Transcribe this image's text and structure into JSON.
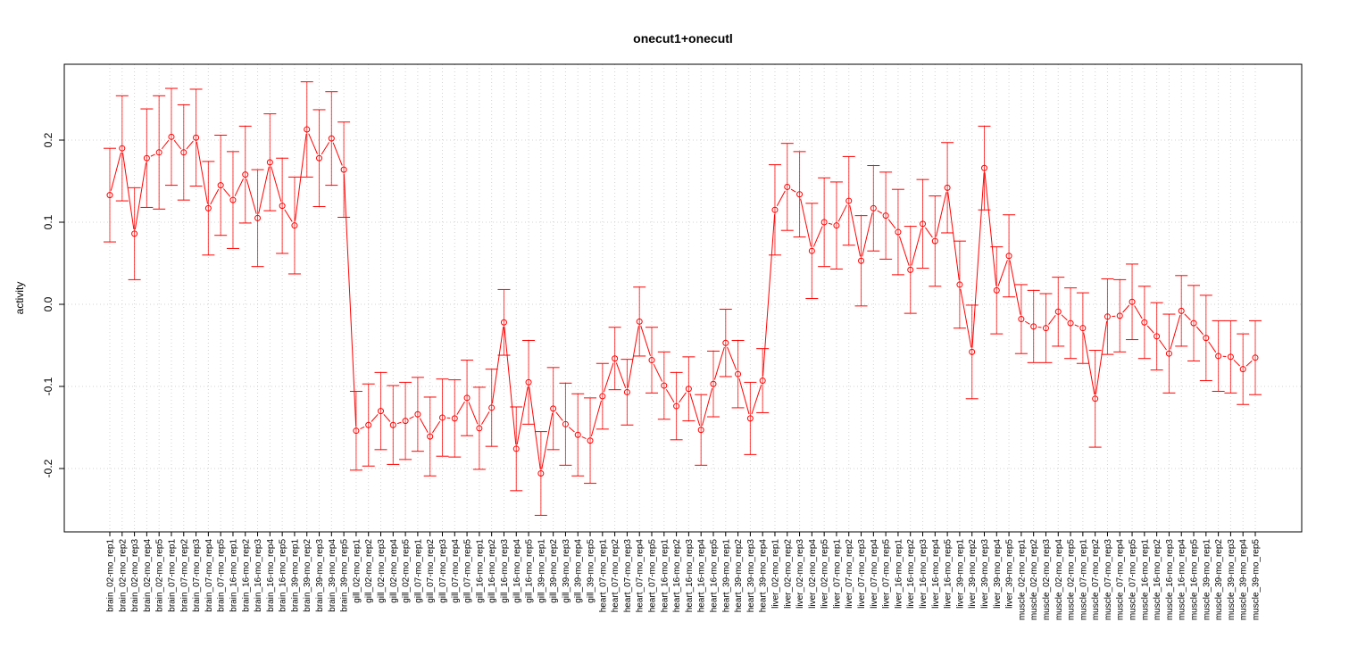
{
  "chart_data": {
    "type": "line",
    "title": "onecut1+onecutl",
    "xlabel": "",
    "ylabel": "activity",
    "ylim": [
      -0.28,
      0.29
    ],
    "yticks": [
      -0.2,
      -0.1,
      0.0,
      0.1,
      0.2
    ],
    "ytick_labels": [
      "-0.2",
      "-0.1",
      "0.0",
      "0.1",
      "0.2"
    ],
    "grid": true,
    "color": "#ff0000",
    "categories": [
      "brain_02-mo_rep1",
      "brain_02-mo_rep2",
      "brain_02-mo_rep3",
      "brain_02-mo_rep4",
      "brain_02-mo_rep5",
      "brain_07-mo_rep1",
      "brain_07-mo_rep2",
      "brain_07-mo_rep3",
      "brain_07-mo_rep4",
      "brain_07-mo_rep5",
      "brain_16-mo_rep1",
      "brain_16-mo_rep2",
      "brain_16-mo_rep3",
      "brain_16-mo_rep4",
      "brain_16-mo_rep5",
      "brain_39-mo_rep1",
      "brain_39-mo_rep2",
      "brain_39-mo_rep3",
      "brain_39-mo_rep4",
      "brain_39-mo_rep5",
      "gill_02-mo_rep1",
      "gill_02-mo_rep2",
      "gill_02-mo_rep3",
      "gill_02-mo_rep4",
      "gill_02-mo_rep5",
      "gill_07-mo_rep1",
      "gill_07-mo_rep2",
      "gill_07-mo_rep3",
      "gill_07-mo_rep4",
      "gill_07-mo_rep5",
      "gill_16-mo_rep1",
      "gill_16-mo_rep2",
      "gill_16-mo_rep3",
      "gill_16-mo_rep4",
      "gill_16-mo_rep5",
      "gill_39-mo_rep1",
      "gill_39-mo_rep2",
      "gill_39-mo_rep3",
      "gill_39-mo_rep4",
      "gill_39-mo_rep5",
      "heart_07-mo_rep1",
      "heart_07-mo_rep2",
      "heart_07-mo_rep3",
      "heart_07-mo_rep4",
      "heart_07-mo_rep5",
      "heart_16-mo_rep1",
      "heart_16-mo_rep2",
      "heart_16-mo_rep3",
      "heart_16-mo_rep4",
      "heart_16-mo_rep5",
      "heart_39-mo_rep1",
      "heart_39-mo_rep2",
      "heart_39-mo_rep3",
      "heart_39-mo_rep4",
      "liver_02-mo_rep1",
      "liver_02-mo_rep2",
      "liver_02-mo_rep3",
      "liver_02-mo_rep4",
      "liver_02-mo_rep5",
      "liver_07-mo_rep1",
      "liver_07-mo_rep2",
      "liver_07-mo_rep3",
      "liver_07-mo_rep4",
      "liver_07-mo_rep5",
      "liver_16-mo_rep1",
      "liver_16-mo_rep2",
      "liver_16-mo_rep3",
      "liver_16-mo_rep4",
      "liver_16-mo_rep5",
      "liver_39-mo_rep1",
      "liver_39-mo_rep2",
      "liver_39-mo_rep3",
      "liver_39-mo_rep4",
      "liver_39-mo_rep5",
      "muscle_02-mo_rep1",
      "muscle_02-mo_rep2",
      "muscle_02-mo_rep3",
      "muscle_02-mo_rep4",
      "muscle_02-mo_rep5",
      "muscle_07-mo_rep1",
      "muscle_07-mo_rep2",
      "muscle_07-mo_rep3",
      "muscle_07-mo_rep4",
      "muscle_07-mo_rep5",
      "muscle_16-mo_rep1",
      "muscle_16-mo_rep2",
      "muscle_16-mo_rep3",
      "muscle_16-mo_rep4",
      "muscle_16-mo_rep5",
      "muscle_39-mo_rep1",
      "muscle_39-mo_rep2",
      "muscle_39-mo_rep3",
      "muscle_39-mo_rep4",
      "muscle_39-mo_rep5"
    ],
    "values": [
      0.133,
      0.19,
      0.086,
      0.178,
      0.185,
      0.204,
      0.185,
      0.203,
      0.117,
      0.145,
      0.127,
      0.158,
      0.105,
      0.173,
      0.12,
      0.096,
      0.213,
      0.178,
      0.202,
      0.164,
      -0.154,
      -0.147,
      -0.13,
      -0.147,
      -0.142,
      -0.134,
      -0.161,
      -0.138,
      -0.139,
      -0.114,
      -0.151,
      -0.126,
      -0.022,
      -0.176,
      -0.095,
      -0.206,
      -0.127,
      -0.146,
      -0.159,
      -0.166,
      -0.112,
      -0.066,
      -0.107,
      -0.021,
      -0.068,
      -0.099,
      -0.124,
      -0.103,
      -0.153,
      -0.097,
      -0.047,
      -0.085,
      -0.139,
      -0.093,
      0.115,
      0.143,
      0.134,
      0.065,
      0.1,
      0.096,
      0.126,
      0.053,
      0.117,
      0.108,
      0.088,
      0.042,
      0.098,
      0.077,
      0.142,
      0.024,
      -0.058,
      0.166,
      0.017,
      0.059,
      -0.018,
      -0.027,
      -0.029,
      -0.009,
      -0.023,
      -0.029,
      -0.115,
      -0.015,
      -0.014,
      0.003,
      -0.022,
      -0.039,
      -0.06,
      -0.008,
      -0.023,
      -0.041,
      -0.063,
      -0.064,
      -0.079,
      -0.065
    ],
    "errors": [
      0.057,
      0.064,
      0.056,
      0.06,
      0.069,
      0.059,
      0.058,
      0.059,
      0.057,
      0.061,
      0.059,
      0.059,
      0.059,
      0.059,
      0.058,
      0.059,
      0.058,
      0.059,
      0.057,
      0.058,
      0.048,
      0.05,
      0.047,
      0.048,
      0.047,
      0.045,
      0.048,
      0.047,
      0.047,
      0.046,
      0.05,
      0.047,
      0.04,
      0.051,
      0.051,
      0.051,
      0.05,
      0.05,
      0.05,
      0.052,
      0.04,
      0.038,
      0.04,
      0.042,
      0.04,
      0.041,
      0.041,
      0.039,
      0.043,
      0.04,
      0.041,
      0.041,
      0.044,
      0.039,
      0.055,
      0.053,
      0.052,
      0.058,
      0.054,
      0.053,
      0.054,
      0.055,
      0.052,
      0.053,
      0.052,
      0.053,
      0.054,
      0.055,
      0.055,
      0.053,
      0.057,
      0.051,
      0.053,
      0.05,
      0.042,
      0.044,
      0.042,
      0.042,
      0.043,
      0.043,
      0.059,
      0.046,
      0.044,
      0.046,
      0.044,
      0.041,
      0.048,
      0.043,
      0.046,
      0.052,
      0.043,
      0.044,
      0.043,
      0.045
    ]
  }
}
